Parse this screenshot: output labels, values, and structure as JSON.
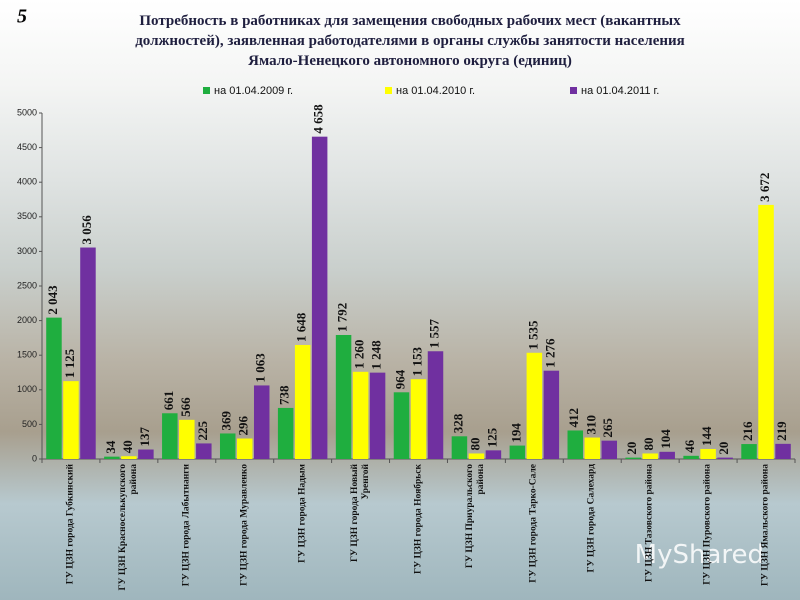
{
  "slide_number": "5",
  "watermark": "MyShared",
  "chart_data": {
    "type": "bar",
    "title": "Потребность в работниках для замещения свободных рабочих мест (вакантных должностей), заявленная работодателями в органы службы занятости населения Ямало-Ненецкого автономного округа (единиц)",
    "categories": [
      "ГУ ЦЗН города Губкинский",
      "ГУ ЦЗН Красноселькупского района",
      "ГУ ЦЗН города Лабытнанги",
      "ГУ ЦЗН города Муравленко",
      "ГУ ЦЗН города Надым",
      "ГУ ЦЗН города Новый Уренгой",
      "ГУ ЦЗН города Ноябрьск",
      "ГУ ЦЗН Приуральского района",
      "ГУ ЦЗН города Тарко-Сале",
      "ГУ ЦЗН города Салехард",
      "ГУ ЦЗН Тазовского района",
      "ГУ ЦЗН Пуровского района",
      "ГУ ЦЗН Ямальского района"
    ],
    "series": [
      {
        "name": "на 01.04.2009 г.",
        "color": "#1fae3f",
        "values": [
          2043,
          34,
          661,
          369,
          738,
          1792,
          964,
          328,
          194,
          412,
          20,
          46,
          216
        ],
        "value_labels": [
          "2 043",
          "34",
          "661",
          "369",
          "738",
          "1 792",
          "964",
          "328",
          "194",
          "412",
          "20",
          "46",
          "216"
        ]
      },
      {
        "name": "на 01.04.2010 г.",
        "color": "#ffff00",
        "values": [
          1125,
          40,
          566,
          296,
          1648,
          1260,
          1153,
          80,
          1535,
          310,
          80,
          144,
          3672
        ],
        "value_labels": [
          "1 125",
          "40",
          "566",
          "296",
          "1 648",
          "1 260",
          "1 153",
          "80",
          "1 535",
          "310",
          "80",
          "144",
          "3 672"
        ]
      },
      {
        "name": "на 01.04.2011 г.",
        "color": "#7030a0",
        "values": [
          3056,
          137,
          225,
          1063,
          4658,
          1248,
          1557,
          125,
          1276,
          265,
          104,
          20,
          219
        ],
        "value_labels": [
          "3 056",
          "137",
          "225",
          "1 063",
          "4 658",
          "1 248",
          "1 557",
          "125",
          "1 276",
          "265",
          "104",
          "20",
          "219"
        ]
      }
    ],
    "ylim": [
      0,
      5000
    ],
    "yticks": [
      0,
      500,
      1000,
      1500,
      2000,
      2500,
      3000,
      3500,
      4000,
      4500,
      5000
    ],
    "legend": "top"
  }
}
